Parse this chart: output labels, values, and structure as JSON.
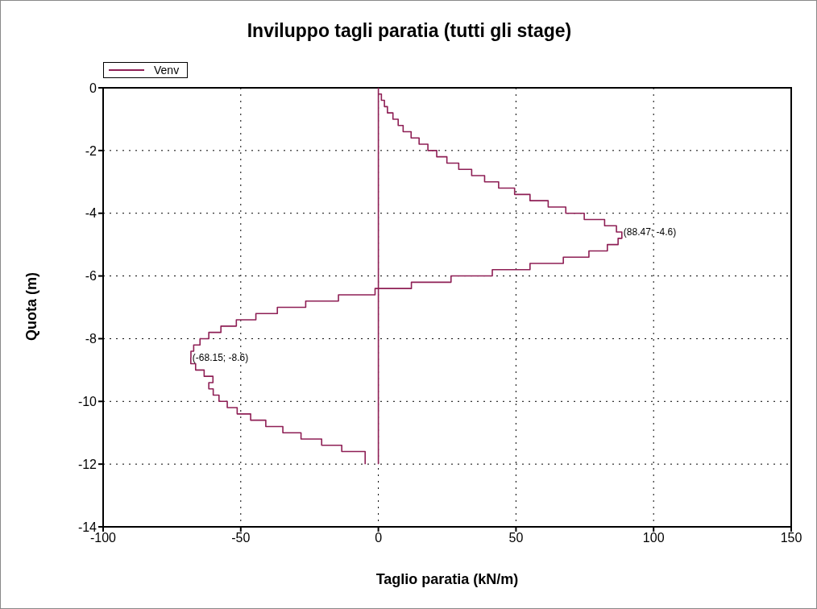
{
  "chart_data": {
    "type": "line",
    "title": "Inviluppo tagli paratia (tutti gli stage)",
    "xlabel": "Taglio paratia (kN/m)",
    "ylabel": "Quota (m)",
    "xlim": [
      -100,
      150
    ],
    "xticks": [
      -100,
      -50,
      0,
      50,
      100,
      150
    ],
    "ylim": [
      -14,
      0
    ],
    "yticks": [
      -14,
      -12,
      -10,
      -8,
      -6,
      -4,
      -2,
      0
    ],
    "grid": true,
    "legend": "top left",
    "line_style": "solid",
    "series": [
      {
        "name": "Venv",
        "color": "#8e1f55",
        "x": [
          0,
          0,
          1.1,
          1.1,
          2.2,
          2.2,
          3.3,
          3.3,
          5.3,
          5.3,
          7.2,
          7.2,
          9.0,
          9.0,
          11.9,
          11.9,
          14.8,
          14.8,
          18.0,
          18.0,
          21.2,
          21.2,
          24.9,
          24.9,
          29.2,
          29.2,
          33.9,
          33.9,
          38.6,
          38.6,
          43.7,
          43.7,
          49.5,
          49.5,
          55.1,
          55.1,
          61.7,
          61.7,
          68.1,
          68.1,
          74.8,
          74.8,
          82.2,
          82.2,
          86.5,
          86.5,
          88.47,
          88.47,
          87.1,
          87.1,
          83.2,
          83.2,
          76.5,
          76.5,
          67.2,
          67.2,
          55.1,
          55.1,
          41.4,
          41.4,
          26.4,
          26.4,
          12.0,
          12.0,
          -1.2,
          -1.2,
          -14.5,
          -14.5,
          -26.4,
          -26.4,
          -36.7,
          -36.7,
          -44.5,
          -44.5,
          -51.6,
          -51.6,
          -57.2,
          -57.2,
          -61.6,
          -61.6,
          -64.8,
          -64.8,
          -67.1,
          -67.1,
          -68.1,
          -68.1,
          -68.15,
          -68.15,
          -66.4,
          -66.4,
          -63.3,
          -63.3,
          -60.1,
          -60.1,
          -61.6,
          -61.6,
          -60.0,
          -60.0,
          -57.9,
          -57.9,
          -54.9,
          -54.9,
          -51.3,
          -51.3,
          -46.4,
          -46.4,
          -40.9,
          -40.9,
          -34.7,
          -34.7,
          -28.1,
          -28.1,
          -20.6,
          -20.6,
          -13.3,
          -13.3,
          -4.8,
          -4.8,
          null,
          0,
          0
        ],
        "values": [
          0,
          -0.2,
          -0.2,
          -0.4,
          -0.4,
          -0.6,
          -0.6,
          -0.8,
          -0.8,
          -1.0,
          -1.0,
          -1.2,
          -1.2,
          -1.4,
          -1.4,
          -1.6,
          -1.6,
          -1.8,
          -1.8,
          -2.0,
          -2.0,
          -2.2,
          -2.2,
          -2.4,
          -2.4,
          -2.6,
          -2.6,
          -2.8,
          -2.8,
          -3.0,
          -3.0,
          -3.2,
          -3.2,
          -3.4,
          -3.4,
          -3.6,
          -3.6,
          -3.8,
          -3.8,
          -4.0,
          -4.0,
          -4.2,
          -4.2,
          -4.4,
          -4.4,
          -4.6,
          -4.6,
          -4.8,
          -4.8,
          -5.0,
          -5.0,
          -5.2,
          -5.2,
          -5.4,
          -5.4,
          -5.6,
          -5.6,
          -5.8,
          -5.8,
          -6.0,
          -6.0,
          -6.2,
          -6.2,
          -6.4,
          -6.4,
          -6.6,
          -6.6,
          -6.8,
          -6.8,
          -7.0,
          -7.0,
          -7.2,
          -7.2,
          -7.4,
          -7.4,
          -7.6,
          -7.6,
          -7.8,
          -7.8,
          -8.0,
          -8.0,
          -8.2,
          -8.2,
          -8.4,
          -8.4,
          -8.6,
          -8.6,
          -8.8,
          -8.8,
          -9.0,
          -9.0,
          -9.2,
          -9.2,
          -9.4,
          -9.4,
          -9.6,
          -9.6,
          -9.8,
          -9.8,
          -10.0,
          -10.0,
          -10.2,
          -10.2,
          -10.4,
          -10.4,
          -10.6,
          -10.6,
          -10.8,
          -10.8,
          -11.0,
          -11.0,
          -11.2,
          -11.2,
          -11.4,
          -11.4,
          -11.6,
          -11.6,
          -12,
          null,
          -12,
          0
        ]
      }
    ],
    "annotations": [
      {
        "text": "(88.47; -4.6)",
        "x": 88.47,
        "y": -4.6
      },
      {
        "text": "(-68.15; -8.6)",
        "x": -68.15,
        "y": -8.6
      }
    ]
  }
}
